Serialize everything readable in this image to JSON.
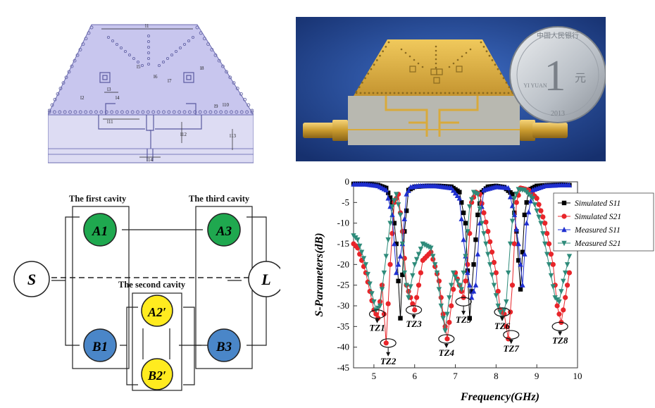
{
  "layout_labels": [
    "l1",
    "l2",
    "l3",
    "l4",
    "l5",
    "l6",
    "l7",
    "l8",
    "l9",
    "l10",
    "l11",
    "l12",
    "l13",
    "l14"
  ],
  "coin": {
    "denomination": "1",
    "yuan_char": "元",
    "top_text": "中国人民银行",
    "latin": "YI YUAN",
    "year": "2013"
  },
  "topology": {
    "cavity_labels": [
      "The first cavity",
      "The second cavity",
      "The third cavity"
    ],
    "nodes": {
      "source": "S",
      "load": "L",
      "a1": "A1",
      "a3": "A3",
      "a2p": "A2′",
      "b1": "B1",
      "b2p": "B2′",
      "b3": "B3"
    },
    "colors": {
      "green": "#1fa84f",
      "yellow": "#ffeb1f",
      "blue": "#4a86c8"
    }
  },
  "chart_data": {
    "type": "line",
    "xlabel": "Frequency(GHz)",
    "ylabel": "S-Parameters(dB)",
    "xlim": [
      4.5,
      10
    ],
    "ylim": [
      -45,
      0
    ],
    "xticks": [
      5,
      6,
      7,
      8,
      9,
      10
    ],
    "yticks": [
      0,
      -5,
      -10,
      -15,
      -20,
      -25,
      -30,
      -35,
      -40,
      -45
    ],
    "legend_position": "right",
    "grid": false,
    "series": [
      {
        "name": "Simulated S11",
        "color": "#000000",
        "marker": "square",
        "x": [
          4.5,
          4.7,
          4.9,
          5.1,
          5.3,
          5.45,
          5.55,
          5.65,
          5.75,
          5.85,
          6.0,
          6.3,
          6.6,
          6.9,
          7.1,
          7.25,
          7.35,
          7.45,
          7.55,
          7.65,
          7.8,
          8.0,
          8.2,
          8.4,
          8.5,
          8.6,
          8.7,
          8.8,
          9.0,
          9.3,
          9.6,
          9.8
        ],
        "y": [
          -0.5,
          -0.5,
          -0.6,
          -0.8,
          -1.5,
          -5,
          -15,
          -33,
          -12,
          -2,
          -1.2,
          -1.0,
          -1.0,
          -1.2,
          -2.5,
          -10,
          -33,
          -20,
          -8,
          -2.5,
          -1.2,
          -1.0,
          -1.3,
          -3,
          -12,
          -26,
          -8,
          -2,
          -1,
          -0.8,
          -0.7,
          -0.8
        ]
      },
      {
        "name": "Simulated S21",
        "color": "#e8252a",
        "marker": "circle",
        "x": [
          4.5,
          4.6,
          4.8,
          5.0,
          5.1,
          5.2,
          5.3,
          5.4,
          5.5,
          5.6,
          5.7,
          5.8,
          5.9,
          6.0,
          6.2,
          6.4,
          6.6,
          6.7,
          6.8,
          6.9,
          7.0,
          7.1,
          7.2,
          7.3,
          7.4,
          7.5,
          7.6,
          7.8,
          8.0,
          8.1,
          8.2,
          8.3,
          8.4,
          8.5,
          8.6,
          8.8,
          9.0,
          9.2,
          9.4,
          9.5,
          9.6,
          9.7,
          9.8
        ],
        "y": [
          -15,
          -16,
          -22,
          -31,
          -33,
          -25,
          -39,
          -20,
          -5,
          -3,
          -12,
          -25,
          -28,
          -31,
          -19,
          -17,
          -24,
          -32,
          -38,
          -30,
          -22,
          -25,
          -28,
          -20,
          -5,
          -2.5,
          -3,
          -12,
          -22,
          -31,
          -32,
          -38,
          -25,
          -5,
          -1.5,
          -2,
          -4,
          -10,
          -20,
          -30,
          -34,
          -28,
          -22
        ]
      },
      {
        "name": "Measured S11",
        "color": "#1f2fd0",
        "marker": "triangle-up",
        "x": [
          4.5,
          4.8,
          5.1,
          5.3,
          5.45,
          5.55,
          5.65,
          5.7,
          5.8,
          5.9,
          6.1,
          6.5,
          6.9,
          7.1,
          7.2,
          7.3,
          7.4,
          7.5,
          7.6,
          7.7,
          8.0,
          8.3,
          8.45,
          8.55,
          8.65,
          8.75,
          8.9,
          9.2,
          9.6,
          9.8
        ],
        "y": [
          -0.6,
          -0.6,
          -1.0,
          -2,
          -8,
          -22,
          -18,
          -15,
          -3,
          -1.3,
          -1.0,
          -1.0,
          -1.5,
          -4,
          -14,
          -22,
          -28,
          -25,
          -10,
          -2,
          -1.2,
          -1.5,
          -8,
          -15,
          -25,
          -10,
          -2,
          -1,
          -0.8,
          -0.8
        ]
      },
      {
        "name": "Measured S21",
        "color": "#2e8b7a",
        "marker": "triangle-down",
        "x": [
          4.5,
          4.6,
          4.8,
          4.95,
          5.05,
          5.15,
          5.25,
          5.35,
          5.45,
          5.55,
          5.65,
          5.75,
          5.85,
          6.0,
          6.2,
          6.4,
          6.55,
          6.65,
          6.75,
          6.85,
          6.95,
          7.05,
          7.15,
          7.25,
          7.35,
          7.45,
          7.55,
          7.65,
          7.85,
          8.05,
          8.15,
          8.25,
          8.35,
          8.45,
          8.55,
          8.7,
          8.9,
          9.1,
          9.3,
          9.45,
          9.55,
          9.65,
          9.8
        ],
        "y": [
          -13,
          -14,
          -20,
          -27,
          -31,
          -30,
          -22,
          -14,
          -6,
          -3,
          -8,
          -22,
          -28,
          -20,
          -15,
          -16,
          -22,
          -30,
          -36,
          -28,
          -22,
          -24,
          -26,
          -18,
          -6,
          -2.5,
          -3,
          -10,
          -20,
          -30,
          -33,
          -29,
          -15,
          -4,
          -1.8,
          -2,
          -4,
          -10,
          -20,
          -28,
          -29,
          -24,
          -18
        ]
      }
    ],
    "annotations": [
      "TZ1",
      "TZ2",
      "TZ3",
      "TZ4",
      "TZ5",
      "TZ6",
      "TZ7",
      "TZ8"
    ],
    "annotation_points": [
      {
        "x": 5.08,
        "y": -32
      },
      {
        "x": 5.35,
        "y": -39
      },
      {
        "x": 5.98,
        "y": -31
      },
      {
        "x": 6.78,
        "y": -38
      },
      {
        "x": 7.2,
        "y": -29
      },
      {
        "x": 8.15,
        "y": -31.5
      },
      {
        "x": 8.37,
        "y": -37
      },
      {
        "x": 9.57,
        "y": -35
      }
    ],
    "annotation_label_dy": [
      1,
      1,
      1,
      1,
      1,
      1,
      1,
      1
    ]
  }
}
